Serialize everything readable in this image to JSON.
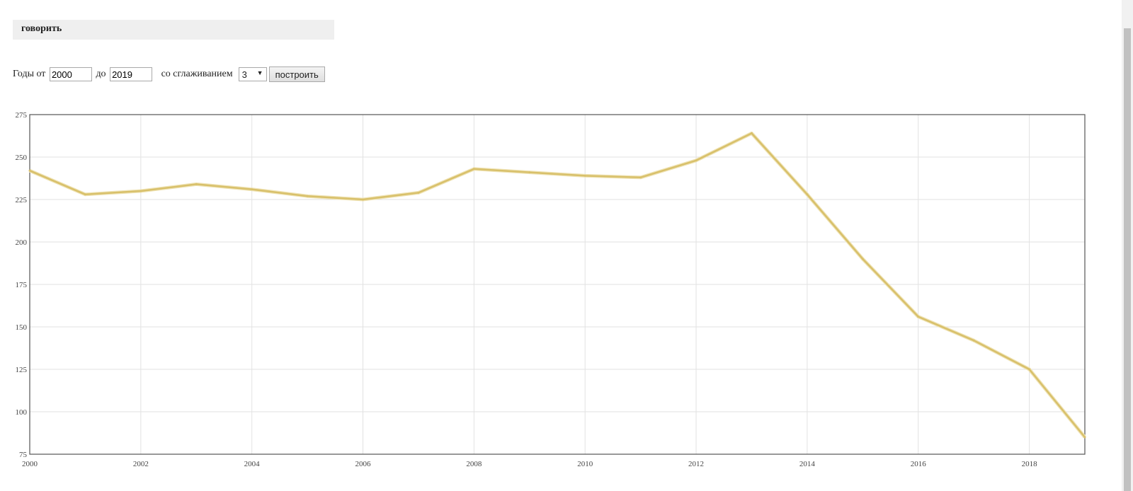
{
  "word": "говорить",
  "controls": {
    "years_from_label": "Годы от ",
    "year_from": "2000",
    "to_label": " до ",
    "year_to": "2019",
    "smoothing_label": "   со сглаживанием",
    "smoothing_value": "3",
    "build_button": "построить"
  },
  "colors": {
    "line": "#d8c06a",
    "grid": "#e2e2e2",
    "frame": "#555555"
  },
  "chart_data": {
    "type": "line",
    "x": [
      2000,
      2001,
      2002,
      2003,
      2004,
      2005,
      2006,
      2007,
      2008,
      2009,
      2010,
      2011,
      2012,
      2013,
      2014,
      2015,
      2016,
      2017,
      2018,
      2019
    ],
    "series": [
      {
        "values": [
          242,
          228,
          230,
          234,
          231,
          227,
          225,
          229,
          243,
          241,
          239,
          238,
          248,
          264,
          228,
          190,
          156,
          142,
          125,
          85
        ]
      }
    ],
    "xlim": [
      2000,
      2019
    ],
    "ylim": [
      75,
      275
    ],
    "yticks": [
      75,
      100,
      125,
      150,
      175,
      200,
      225,
      250,
      275
    ],
    "xticks": [
      2000,
      2002,
      2004,
      2006,
      2008,
      2010,
      2012,
      2014,
      2016,
      2018
    ],
    "grid": true,
    "title": "",
    "xlabel": "",
    "ylabel": ""
  }
}
